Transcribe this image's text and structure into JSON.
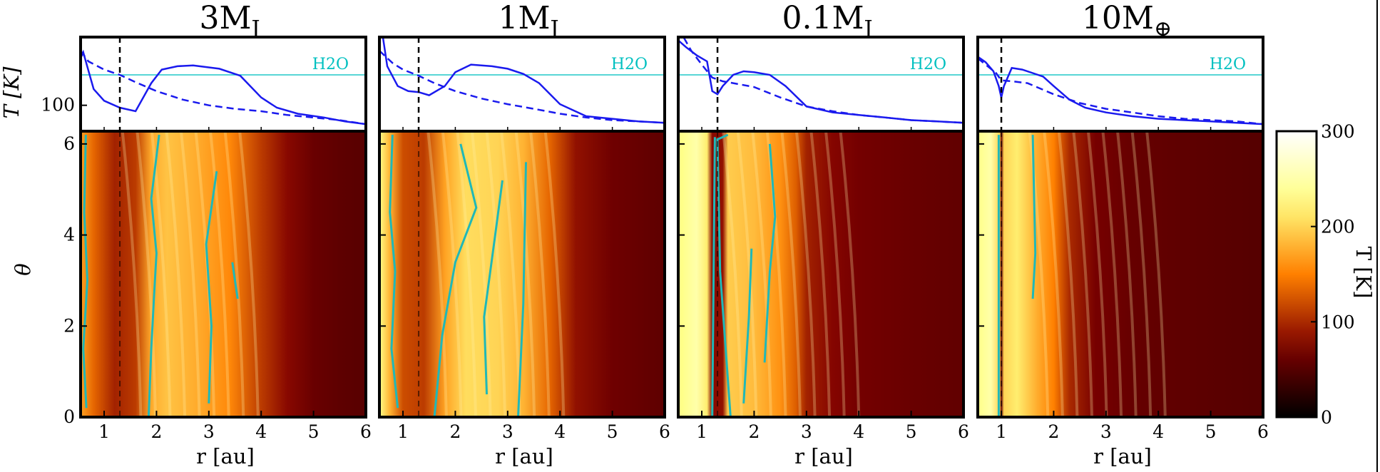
{
  "colors": {
    "temperature_line": "#1a1aee",
    "h2o_line": "#20c8c8",
    "snowline_contour": "#1fb8b8",
    "planet_marker": "#000000",
    "colormap": "afmhot"
  },
  "colorbar": {
    "label": "T [K]",
    "range": [
      0,
      300
    ],
    "ticks": [
      "0",
      "100",
      "200",
      "300"
    ]
  },
  "chart_data": [
    {
      "type": "line",
      "title": "3M_J",
      "title_parts": {
        "main": "3M",
        "sub": "J"
      },
      "ylabel": "T [K]",
      "yscale": "log",
      "ylim": [
        80,
        180
      ],
      "yticks": [
        "100"
      ],
      "xlim": [
        0.55,
        6
      ],
      "planet_r": 1.3,
      "h2o_T": 130,
      "h2o_label": "H2O",
      "series": [
        {
          "style": "solid",
          "x": [
            0.55,
            0.6,
            0.8,
            1.0,
            1.3,
            1.6,
            1.9,
            2.1,
            2.4,
            2.7,
            3.2,
            3.6,
            4.0,
            4.3,
            4.7,
            5.2,
            5.6,
            6.0
          ],
          "y": [
            150,
            158,
            115,
            104,
            98,
            95,
            121,
            136,
            140,
            141,
            137,
            129,
            107,
            98,
            93,
            90,
            87,
            85
          ]
        },
        {
          "style": "dashed",
          "x": [
            0.55,
            0.7,
            1.0,
            1.3,
            1.6,
            2.0,
            2.5,
            3.0,
            3.5,
            4.0,
            4.5,
            5.0,
            5.5,
            6.0
          ],
          "y": [
            160,
            146,
            136,
            130,
            122,
            113,
            105,
            100,
            97,
            95,
            92,
            90,
            88,
            85
          ]
        }
      ]
    },
    {
      "type": "line",
      "title": "1M_J",
      "title_parts": {
        "main": "1M",
        "sub": "J"
      },
      "ylabel": "",
      "yscale": "log",
      "ylim": [
        80,
        180
      ],
      "yticks": [],
      "xlim": [
        0.55,
        6
      ],
      "planet_r": 1.3,
      "h2o_T": 130,
      "h2o_label": "H2O",
      "series": [
        {
          "style": "solid",
          "x": [
            0.55,
            0.7,
            0.9,
            1.1,
            1.3,
            1.5,
            1.8,
            2.0,
            2.3,
            2.7,
            3.0,
            3.3,
            3.6,
            4.0,
            4.5,
            5.0,
            5.5,
            6.0
          ],
          "y": [
            220,
            140,
            118,
            113,
            112,
            109,
            118,
            133,
            142,
            140,
            137,
            131,
            121,
            101,
            91,
            89,
            87,
            86
          ]
        },
        {
          "style": "dashed",
          "x": [
            0.55,
            0.8,
            1.0,
            1.3,
            1.6,
            2.0,
            2.5,
            3.0,
            3.5,
            4.0,
            4.5,
            5.0,
            5.5,
            6.0
          ],
          "y": [
            160,
            144,
            136,
            129,
            121,
            113,
            106,
            101,
            97,
            93,
            90,
            88,
            87,
            86
          ]
        }
      ]
    },
    {
      "type": "line",
      "title": "0.1M_J",
      "title_parts": {
        "main": "0.1M",
        "sub": "J"
      },
      "ylabel": "",
      "yscale": "log",
      "ylim": [
        80,
        180
      ],
      "yticks": [],
      "xlim": [
        0.55,
        6
      ],
      "planet_r": 1.3,
      "h2o_T": 130,
      "h2o_label": "H2O",
      "series": [
        {
          "style": "solid",
          "x": [
            0.55,
            0.7,
            0.9,
            1.1,
            1.2,
            1.3,
            1.4,
            1.6,
            1.8,
            2.0,
            2.3,
            2.6,
            3.0,
            3.5,
            4.0,
            4.5,
            5.0,
            5.5,
            6.0
          ],
          "y": [
            175,
            165,
            154,
            146,
            113,
            110,
            118,
            130,
            134,
            133,
            130,
            118,
            99,
            94,
            92,
            90,
            88,
            87,
            86
          ]
        },
        {
          "style": "dashed",
          "x": [
            0.55,
            0.8,
            1.0,
            1.2,
            1.4,
            1.6,
            2.0,
            2.5,
            3.0,
            3.5,
            4.0,
            4.5,
            5.0,
            5.5,
            6.0
          ],
          "y": [
            195,
            160,
            142,
            127,
            123,
            121,
            117,
            107,
            99,
            95,
            92,
            90,
            88,
            87,
            86
          ]
        }
      ]
    },
    {
      "type": "line",
      "title": "10M_⊕",
      "title_parts": {
        "main": "10M",
        "sub": "⊕"
      },
      "ylabel": "",
      "yscale": "log",
      "ylim": [
        80,
        180
      ],
      "yticks": [],
      "xlim": [
        0.55,
        6
      ],
      "planet_r": 1.0,
      "h2o_T": 130,
      "h2o_label": "H2O",
      "series": [
        {
          "style": "solid",
          "x": [
            0.55,
            0.7,
            0.85,
            0.95,
            1.0,
            1.05,
            1.2,
            1.4,
            1.6,
            1.8,
            2.0,
            2.3,
            2.6,
            3.0,
            3.5,
            4.0,
            4.5,
            5.0,
            5.5,
            6.0
          ],
          "y": [
            152,
            145,
            134,
            118,
            107,
            118,
            138,
            136,
            132,
            128,
            118,
            105,
            98,
            94,
            91,
            89,
            88,
            87,
            86,
            85
          ]
        },
        {
          "style": "dashed",
          "x": [
            0.55,
            0.7,
            0.9,
            1.0,
            1.2,
            1.5,
            2.0,
            2.5,
            3.0,
            3.5,
            4.0,
            4.5,
            5.0,
            5.5,
            6.0
          ],
          "y": [
            150,
            142,
            132,
            124,
            123,
            121,
            110,
            102,
            97,
            94,
            91,
            89,
            88,
            87,
            85
          ]
        }
      ]
    },
    {
      "type": "heatmap",
      "xlabel": "r [au]",
      "ylabel": "θ",
      "xlim": [
        0.55,
        6
      ],
      "ylim": [
        0,
        6.28
      ],
      "xticks": [
        "1",
        "2",
        "3",
        "4",
        "5",
        "6"
      ],
      "yticks": [
        "0",
        "2",
        "4",
        "6"
      ],
      "radial_T": [
        [
          0.55,
          170
        ],
        [
          0.8,
          135
        ],
        [
          1.2,
          95
        ],
        [
          1.6,
          110
        ],
        [
          1.9,
          175
        ],
        [
          2.2,
          190
        ],
        [
          2.8,
          175
        ],
        [
          3.4,
          155
        ],
        [
          4.0,
          110
        ],
        [
          4.5,
          80
        ],
        [
          5.0,
          62
        ],
        [
          5.5,
          55
        ],
        [
          6.0,
          52
        ]
      ]
    },
    {
      "type": "heatmap",
      "xlabel": "r [au]",
      "ylabel": "",
      "xlim": [
        0.55,
        6
      ],
      "ylim": [
        0,
        6.28
      ],
      "xticks": [
        "1",
        "2",
        "3",
        "4",
        "5",
        "6"
      ],
      "yticks": [],
      "radial_T": [
        [
          0.55,
          230
        ],
        [
          0.75,
          180
        ],
        [
          1.0,
          120
        ],
        [
          1.4,
          110
        ],
        [
          1.8,
          170
        ],
        [
          2.2,
          205
        ],
        [
          2.8,
          200
        ],
        [
          3.3,
          180
        ],
        [
          3.8,
          135
        ],
        [
          4.3,
          85
        ],
        [
          5.0,
          65
        ],
        [
          6.0,
          55
        ]
      ]
    },
    {
      "type": "heatmap",
      "xlabel": "r [au]",
      "ylabel": "",
      "xlim": [
        0.55,
        6
      ],
      "ylim": [
        0,
        6.28
      ],
      "xticks": [
        "1",
        "2",
        "3",
        "4",
        "5",
        "6"
      ],
      "yticks": [],
      "radial_T": [
        [
          0.55,
          225
        ],
        [
          0.9,
          250
        ],
        [
          1.1,
          215
        ],
        [
          1.2,
          80
        ],
        [
          1.4,
          85
        ],
        [
          1.5,
          195
        ],
        [
          2.0,
          185
        ],
        [
          2.5,
          160
        ],
        [
          2.8,
          130
        ],
        [
          3.0,
          95
        ],
        [
          3.5,
          78
        ],
        [
          4.0,
          68
        ],
        [
          5.0,
          62
        ],
        [
          6.0,
          57
        ]
      ]
    },
    {
      "type": "heatmap",
      "xlabel": "r [au]",
      "ylabel": "",
      "xlim": [
        0.55,
        6
      ],
      "ylim": [
        0,
        6.28
      ],
      "xticks": [
        "1",
        "2",
        "3",
        "4",
        "5",
        "6"
      ],
      "yticks": [],
      "radial_T": [
        [
          0.55,
          230
        ],
        [
          0.8,
          250
        ],
        [
          0.97,
          200
        ],
        [
          1.0,
          60
        ],
        [
          1.05,
          200
        ],
        [
          1.3,
          215
        ],
        [
          1.7,
          175
        ],
        [
          2.0,
          150
        ],
        [
          2.3,
          100
        ],
        [
          2.8,
          70
        ],
        [
          3.5,
          60
        ],
        [
          4.5,
          55
        ],
        [
          6.0,
          50
        ]
      ]
    }
  ]
}
